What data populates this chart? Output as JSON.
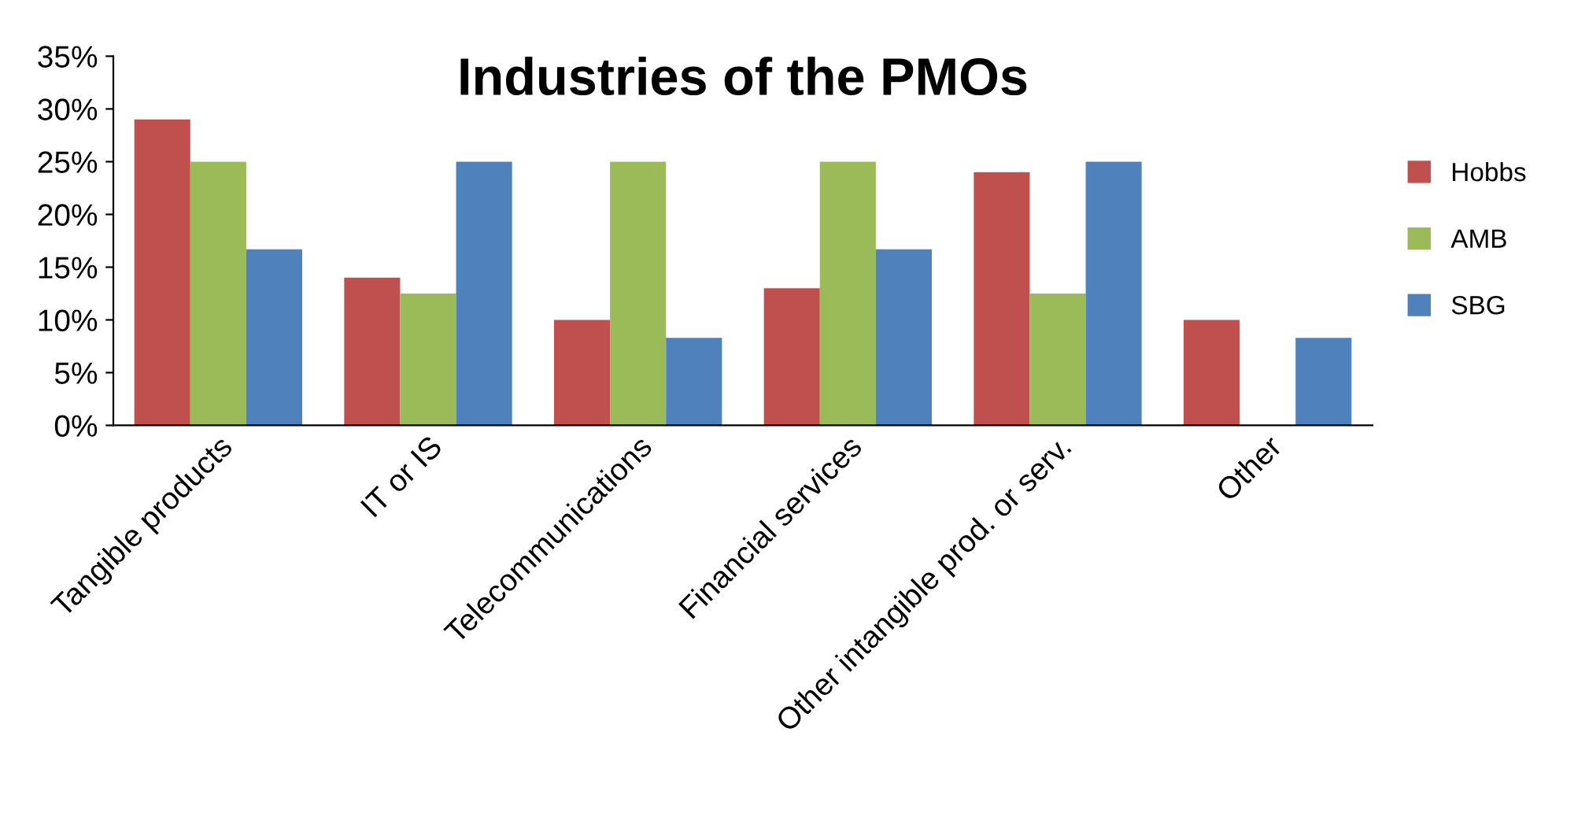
{
  "chart_data": {
    "type": "bar",
    "title": "Industries of the PMOs",
    "categories": [
      "Tangible products",
      "IT or IS",
      "Telecommunications",
      "Financial services",
      "Other intangible prod. or serv.",
      "Other"
    ],
    "series": [
      {
        "name": "Hobbs",
        "color": "#c0504d",
        "values": [
          29,
          14,
          10,
          13,
          24,
          10
        ]
      },
      {
        "name": "AMB",
        "color": "#9bbb59",
        "values": [
          25,
          12.5,
          25,
          25,
          12.5,
          null
        ]
      },
      {
        "name": "SBG",
        "color": "#4f81bd",
        "values": [
          16.7,
          25,
          8.3,
          16.7,
          25,
          8.3
        ]
      }
    ],
    "ylim": [
      0,
      35
    ],
    "yticks": [
      {
        "value": 0,
        "label": "0%"
      },
      {
        "value": 5,
        "label": "5%"
      },
      {
        "value": 10,
        "label": "10%"
      },
      {
        "value": 15,
        "label": "15%"
      },
      {
        "value": 20,
        "label": "20%"
      },
      {
        "value": 25,
        "label": "25%"
      },
      {
        "value": 30,
        "label": "30%"
      },
      {
        "value": 35,
        "label": "35%"
      }
    ],
    "grid": false,
    "legend": "right"
  }
}
